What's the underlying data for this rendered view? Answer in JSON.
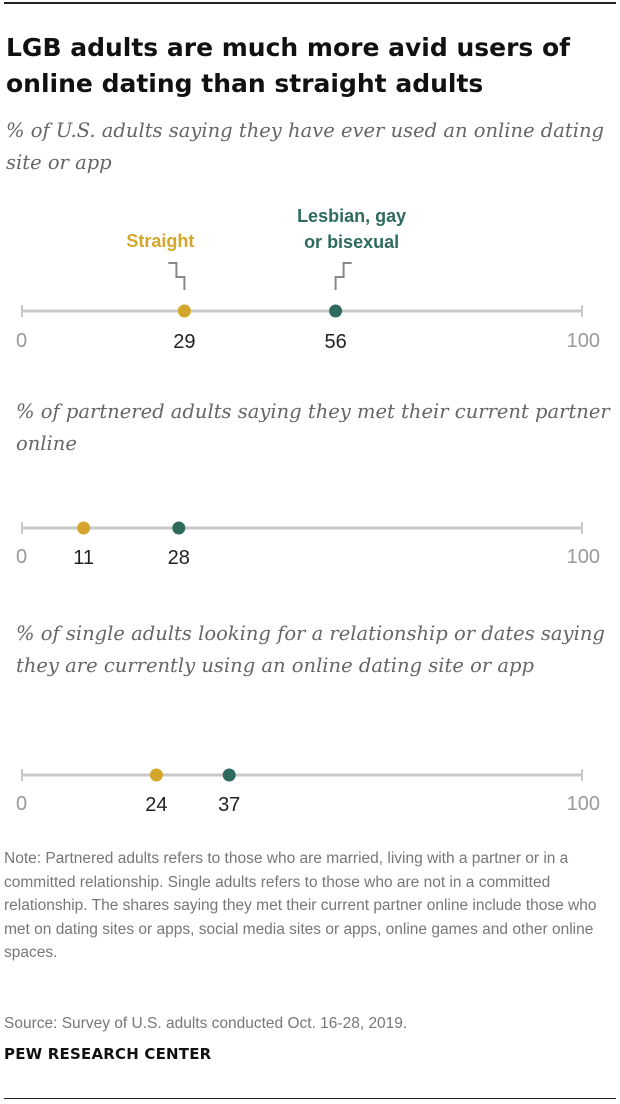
{
  "title": "LGB adults are much more avid users of online dating than straight adults",
  "colors": {
    "straight": "#D4A72C",
    "lgb": "#2E6B5E",
    "axis": "#c8c8c8",
    "ticks": "#999999",
    "text": "#222222"
  },
  "chart_data": [
    {
      "type": "scatter",
      "title": "% of U.S. adults saying they have ever used an online dating site or app",
      "xlim": [
        0,
        100
      ],
      "tick_labels": [
        "0",
        "100"
      ],
      "series": [
        {
          "name": "Straight",
          "values": [
            29
          ],
          "labels": [
            "29"
          ]
        },
        {
          "name": "Lesbian, gay or bisexual",
          "values": [
            56
          ],
          "labels": [
            "56"
          ]
        }
      ],
      "legend": {
        "straight": "Straight",
        "lgb_line1": "Lesbian, gay",
        "lgb_line2": "or bisexual"
      }
    },
    {
      "type": "scatter",
      "title": "% of partnered adults saying they met their current partner online",
      "xlim": [
        0,
        100
      ],
      "tick_labels": [
        "0",
        "100"
      ],
      "series": [
        {
          "name": "Straight",
          "values": [
            11
          ],
          "labels": [
            "11"
          ]
        },
        {
          "name": "Lesbian, gay or bisexual",
          "values": [
            28
          ],
          "labels": [
            "28"
          ]
        }
      ]
    },
    {
      "type": "scatter",
      "title": "% of single adults looking for a relationship or dates saying they are currently using an online dating site or app",
      "xlim": [
        0,
        100
      ],
      "tick_labels": [
        "0",
        "100"
      ],
      "series": [
        {
          "name": "Straight",
          "values": [
            24
          ],
          "labels": [
            "24"
          ]
        },
        {
          "name": "Lesbian, gay or bisexual",
          "values": [
            37
          ],
          "labels": [
            "37"
          ]
        }
      ]
    }
  ],
  "note": "Note: Partnered adults refers to those who are married, living with a partner or in a committed relationship. Single adults refers to those who are not in a committed relationship. The shares saying they met their current partner online include those who met on dating sites or apps, social media sites or apps, online games and other online spaces.",
  "source": "Source: Survey of U.S. adults conducted Oct. 16-28, 2019.",
  "brand": "PEW RESEARCH CENTER"
}
